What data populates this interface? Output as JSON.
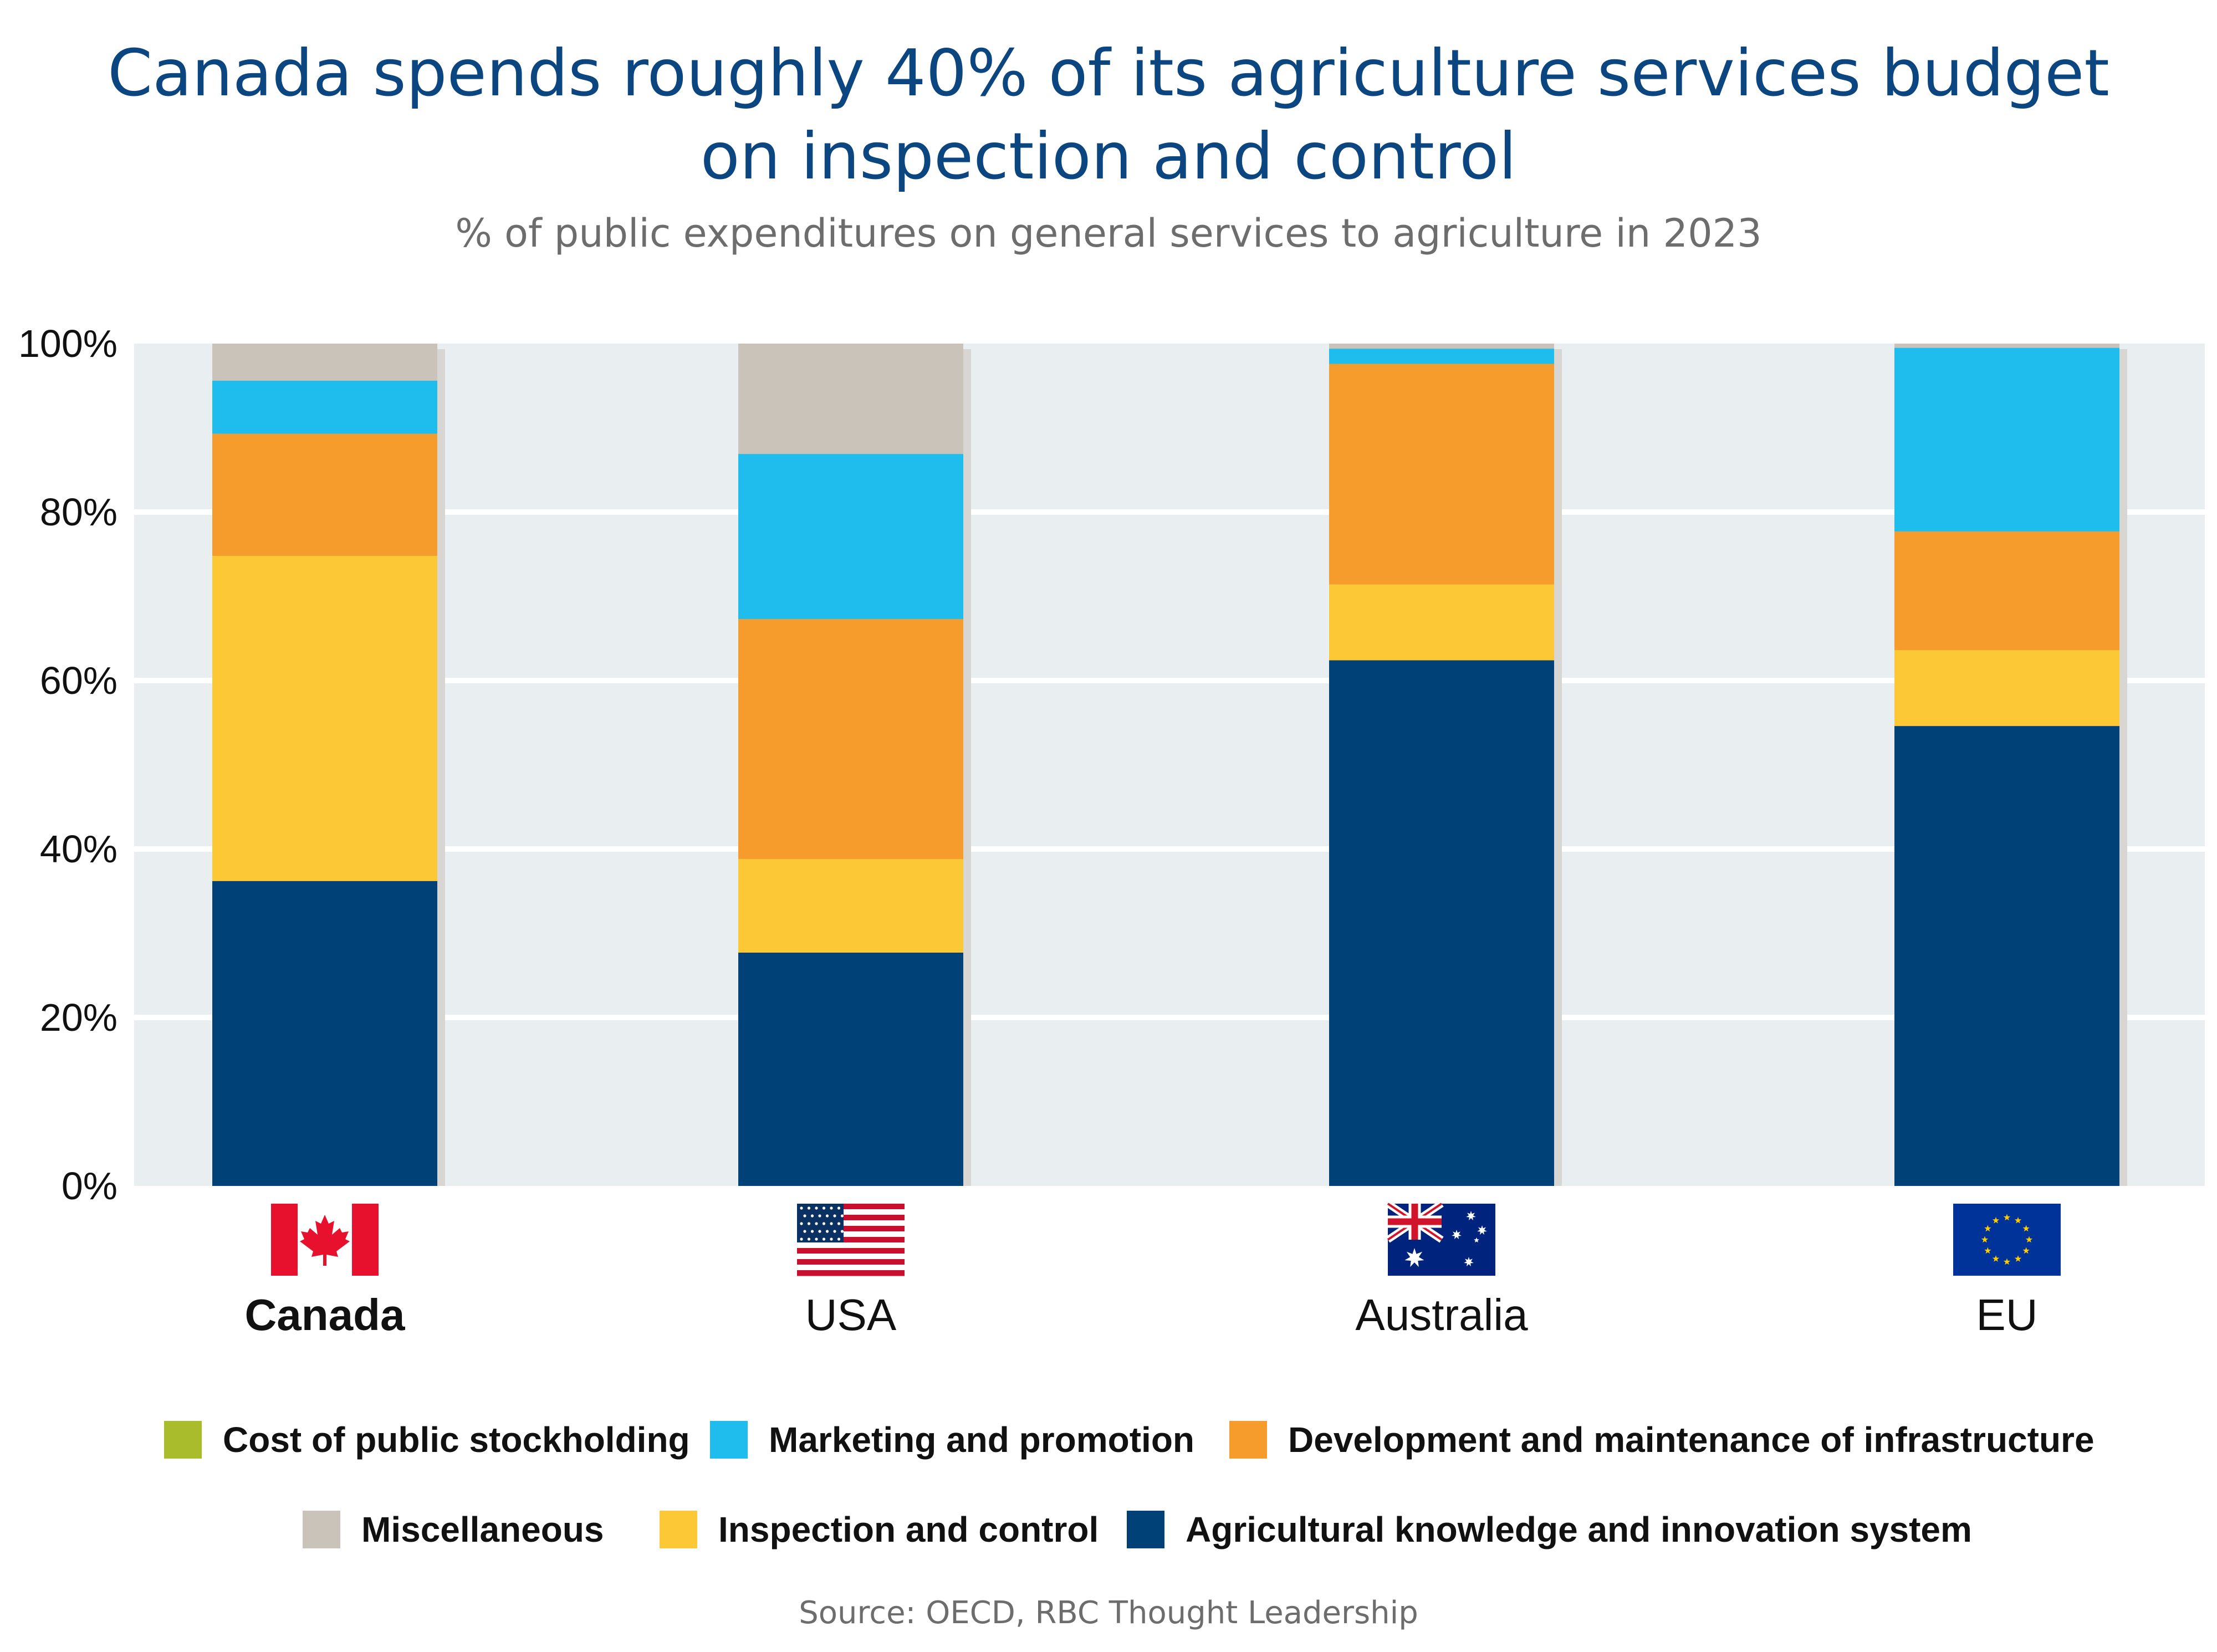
{
  "title_lines": [
    "Canada spends roughly 40% of its agriculture services budget",
    "on inspection and control"
  ],
  "subtitle": "% of public expenditures on general services to agriculture in 2023",
  "source": "Source: OECD, RBC Thought Leadership",
  "colors": {
    "plot_background": "#e9eef1",
    "gridline": "#ffffff",
    "bar_shadow": "#d8d6d2"
  },
  "chart_data": {
    "type": "bar",
    "stacked": true,
    "categories": [
      "Canada",
      "USA",
      "Australia",
      "EU"
    ],
    "category_flags": [
      "canada-flag",
      "usa-flag",
      "australia-flag",
      "eu-flag"
    ],
    "highlighted_category": "Canada",
    "ylim": [
      0,
      100
    ],
    "yticks": [
      0,
      20,
      40,
      60,
      80,
      100
    ],
    "ytick_labels": [
      "0%",
      "20%",
      "40%",
      "60%",
      "80%",
      "100%"
    ],
    "grid": true,
    "legend_position": "bottom",
    "series": [
      {
        "name": "Agricultural knowledge and innovation system",
        "color": "#004177",
        "values": [
          36.2,
          27.7,
          62.4,
          54.6
        ]
      },
      {
        "name": "Inspection and control",
        "color": "#fdc835",
        "values": [
          38.6,
          11.1,
          9.0,
          9.0
        ]
      },
      {
        "name": "Development and maintenance of infrastructure",
        "color": "#f59c2c",
        "values": [
          14.5,
          28.5,
          26.2,
          14.1
        ]
      },
      {
        "name": "Marketing and promotion",
        "color": "#1fbcee",
        "values": [
          6.3,
          19.6,
          1.8,
          21.8
        ]
      },
      {
        "name": "Cost of public stockholding",
        "color": "#a9bc2c",
        "values": [
          0,
          0,
          0,
          0
        ]
      },
      {
        "name": "Miscellaneous",
        "color": "#c9c3ba",
        "values": [
          4.4,
          13.1,
          0.6,
          0.5
        ]
      }
    ],
    "legend_rows": [
      [
        "Cost of public stockholding",
        "Marketing and promotion",
        "Development and maintenance of infrastructure"
      ],
      [
        "Miscellaneous",
        "Inspection and control",
        "Agricultural knowledge and innovation system"
      ]
    ]
  }
}
